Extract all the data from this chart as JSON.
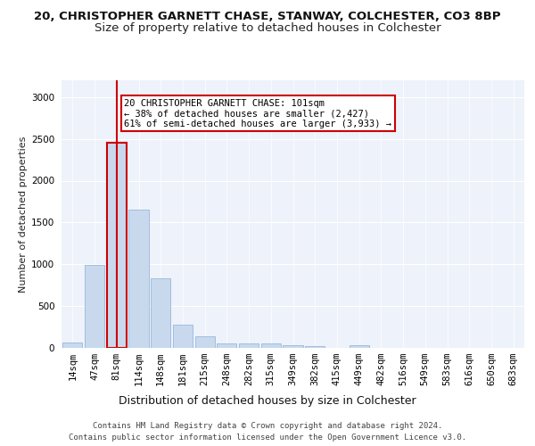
{
  "title_line1": "20, CHRISTOPHER GARNETT CHASE, STANWAY, COLCHESTER, CO3 8BP",
  "title_line2": "Size of property relative to detached houses in Colchester",
  "xlabel": "Distribution of detached houses by size in Colchester",
  "ylabel": "Number of detached properties",
  "footnote1": "Contains HM Land Registry data © Crown copyright and database right 2024.",
  "footnote2": "Contains public sector information licensed under the Open Government Licence v3.0.",
  "bar_labels": [
    "14sqm",
    "47sqm",
    "81sqm",
    "114sqm",
    "148sqm",
    "181sqm",
    "215sqm",
    "248sqm",
    "282sqm",
    "315sqm",
    "349sqm",
    "382sqm",
    "415sqm",
    "449sqm",
    "482sqm",
    "516sqm",
    "549sqm",
    "583sqm",
    "616sqm",
    "650sqm",
    "683sqm"
  ],
  "bar_values": [
    60,
    990,
    2450,
    1650,
    830,
    280,
    140,
    55,
    55,
    55,
    30,
    20,
    0,
    35,
    0,
    0,
    0,
    0,
    0,
    0,
    0
  ],
  "bar_color": "#c8d9ee",
  "bar_edgecolor": "#8aafd4",
  "highlight_bar_index": 2,
  "vline_color": "#cc0000",
  "annotation_text": "20 CHRISTOPHER GARNETT CHASE: 101sqm\n← 38% of detached houses are smaller (2,427)\n61% of semi-detached houses are larger (3,933) →",
  "annotation_box_edgecolor": "#cc0000",
  "annotation_box_facecolor": "#ffffff",
  "ylim": [
    0,
    3200
  ],
  "yticks": [
    0,
    500,
    1000,
    1500,
    2000,
    2500,
    3000
  ],
  "background_color": "#eef2fa",
  "grid_color": "#ffffff",
  "title1_fontsize": 9.5,
  "title2_fontsize": 9.5,
  "xlabel_fontsize": 9,
  "ylabel_fontsize": 8,
  "tick_fontsize": 7.5,
  "annot_fontsize": 7.5,
  "footnote_fontsize": 6.5
}
